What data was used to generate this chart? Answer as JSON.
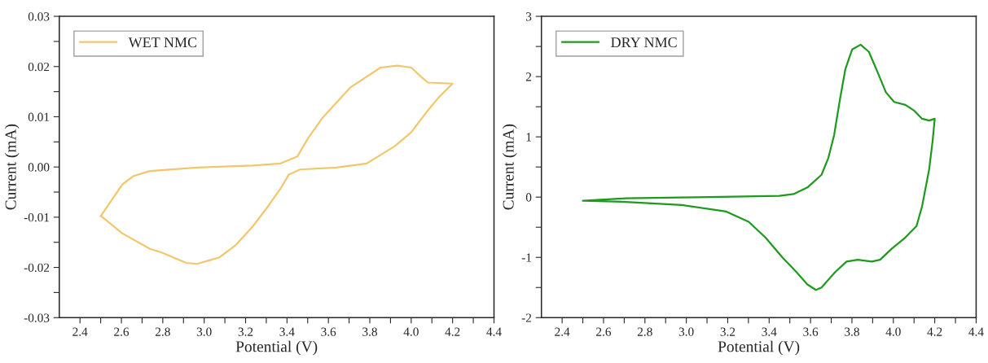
{
  "chart_data": [
    {
      "type": "line",
      "xlabel": "Potential (V)",
      "ylabel": "Current (mA)",
      "legend": "top left",
      "grid": false,
      "xlim": [
        2.3,
        4.4
      ],
      "xticks": [
        {
          "value": 2.4,
          "label": "2.4"
        },
        {
          "value": 2.5,
          "label": null
        },
        {
          "value": 2.6,
          "label": "2.6"
        },
        {
          "value": 2.7,
          "label": null
        },
        {
          "value": 2.8,
          "label": "2.8"
        },
        {
          "value": 2.9,
          "label": null
        },
        {
          "value": 3.0,
          "label": "3.0"
        },
        {
          "value": 3.1,
          "label": null
        },
        {
          "value": 3.2,
          "label": "3.2"
        },
        {
          "value": 3.3,
          "label": null
        },
        {
          "value": 3.4,
          "label": "3.4"
        },
        {
          "value": 3.5,
          "label": null
        },
        {
          "value": 3.6,
          "label": "3.6"
        },
        {
          "value": 3.7,
          "label": null
        },
        {
          "value": 3.8,
          "label": "3.8"
        },
        {
          "value": 3.9,
          "label": null
        },
        {
          "value": 4.0,
          "label": "4.0"
        },
        {
          "value": 4.1,
          "label": null
        },
        {
          "value": 4.2,
          "label": "4.2"
        },
        {
          "value": 4.3,
          "label": null
        },
        {
          "value": 4.4,
          "label": "4.4"
        }
      ],
      "ylim": [
        -0.03,
        0.03
      ],
      "yticks": [
        {
          "value": -0.03,
          "label": "-0.03"
        },
        {
          "value": -0.025,
          "label": null
        },
        {
          "value": -0.02,
          "label": "-0.02"
        },
        {
          "value": -0.015,
          "label": null
        },
        {
          "value": -0.01,
          "label": "-0.01"
        },
        {
          "value": -0.005,
          "label": null
        },
        {
          "value": 0,
          "label": "0.00"
        },
        {
          "value": 0.005,
          "label": null
        },
        {
          "value": 0.01,
          "label": "0.01"
        },
        {
          "value": 0.015,
          "label": null
        },
        {
          "value": 0.02,
          "label": "0.02"
        },
        {
          "value": 0.025,
          "label": null
        },
        {
          "value": 0.03,
          "label": "0.03"
        }
      ],
      "series": [
        {
          "name": "WET NMC",
          "color": "#f2c76b",
          "x": [
            2.5,
            2.604,
            2.658,
            2.738,
            2.966,
            3.235,
            3.369,
            3.45,
            3.503,
            3.57,
            3.705,
            3.852,
            3.933,
            4.0,
            4.047,
            4.081,
            4.2,
            4.134,
            4.081,
            4.0,
            3.919,
            3.785,
            3.638,
            3.463,
            3.409,
            3.369,
            3.302,
            3.235,
            3.154,
            3.074,
            2.966,
            2.913,
            2.792,
            2.738,
            2.604,
            2.503
          ],
          "values": [
            -0.0098,
            -0.0035,
            -0.0018,
            -0.0008,
            -0.0001,
            0.0003,
            0.0007,
            0.0021,
            0.0058,
            0.0097,
            0.0158,
            0.0198,
            0.0202,
            0.0198,
            0.018,
            0.0168,
            0.0166,
            0.0139,
            0.0113,
            0.0069,
            0.0041,
            0.0007,
            -0.0001,
            -0.0005,
            -0.0015,
            -0.0043,
            -0.0082,
            -0.0118,
            -0.0155,
            -0.018,
            -0.0193,
            -0.0191,
            -0.017,
            -0.0163,
            -0.0132,
            -0.0098
          ]
        }
      ]
    },
    {
      "type": "line",
      "xlabel": "Potential (V)",
      "ylabel": "Current (mA)",
      "legend": "top left",
      "grid": false,
      "xlim": [
        2.3,
        4.4
      ],
      "xticks": [
        {
          "value": 2.4,
          "label": "2.4"
        },
        {
          "value": 2.5,
          "label": null
        },
        {
          "value": 2.6,
          "label": "2.6"
        },
        {
          "value": 2.7,
          "label": null
        },
        {
          "value": 2.8,
          "label": "2.8"
        },
        {
          "value": 2.9,
          "label": null
        },
        {
          "value": 3.0,
          "label": "3.0"
        },
        {
          "value": 3.1,
          "label": null
        },
        {
          "value": 3.2,
          "label": "3.2"
        },
        {
          "value": 3.3,
          "label": null
        },
        {
          "value": 3.4,
          "label": "3.4"
        },
        {
          "value": 3.5,
          "label": null
        },
        {
          "value": 3.6,
          "label": "3.6"
        },
        {
          "value": 3.7,
          "label": null
        },
        {
          "value": 3.8,
          "label": "3.8"
        },
        {
          "value": 3.9,
          "label": null
        },
        {
          "value": 4.0,
          "label": "4.0"
        },
        {
          "value": 4.1,
          "label": null
        },
        {
          "value": 4.2,
          "label": "4.2"
        },
        {
          "value": 4.3,
          "label": null
        },
        {
          "value": 4.4,
          "label": "4.4"
        }
      ],
      "ylim": [
        -2,
        3
      ],
      "yticks": [
        -2,
        {
          "value": -1.5,
          "label": null
        },
        -1,
        {
          "value": -0.5,
          "label": null
        },
        0,
        {
          "value": 0.5,
          "label": null
        },
        1,
        {
          "value": 1.5,
          "label": null
        },
        2,
        {
          "value": 2.5,
          "label": null
        },
        3
      ],
      "series": [
        {
          "name": "DRY NMC",
          "color": "#1e9a1e",
          "x": [
            2.5,
            2.707,
            3.112,
            3.45,
            3.518,
            3.585,
            3.653,
            3.686,
            3.714,
            3.741,
            3.768,
            3.801,
            3.842,
            3.882,
            3.923,
            3.964,
            4.004,
            4.058,
            4.099,
            4.139,
            4.173,
            4.2,
            4.19,
            4.173,
            4.139,
            4.112,
            4.058,
            3.991,
            3.936,
            3.896,
            3.828,
            3.774,
            3.72,
            3.653,
            3.626,
            3.585,
            3.531,
            3.464,
            3.382,
            3.301,
            3.193,
            2.977,
            2.707,
            2.503
          ],
          "values": [
            -0.06,
            -0.02,
            0,
            0.02,
            0.05,
            0.16,
            0.37,
            0.65,
            1.03,
            1.6,
            2.12,
            2.45,
            2.53,
            2.41,
            2.08,
            1.74,
            1.58,
            1.53,
            1.44,
            1.3,
            1.27,
            1.3,
            0.94,
            0.46,
            -0.15,
            -0.48,
            -0.67,
            -0.86,
            -1.04,
            -1.07,
            -1.04,
            -1.07,
            -1.24,
            -1.5,
            -1.54,
            -1.45,
            -1.24,
            -1.0,
            -0.67,
            -0.41,
            -0.24,
            -0.13,
            -0.08,
            -0.06
          ]
        }
      ]
    }
  ]
}
